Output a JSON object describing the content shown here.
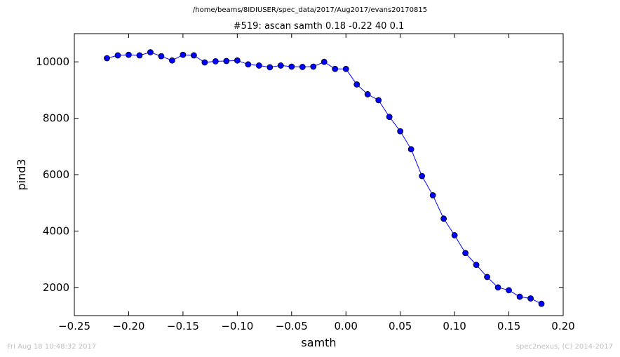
{
  "suptitle": "/home/beams/8IDIUSER/spec_data/2017/Aug2017/evans20170815",
  "footer": {
    "timestamp": "Fri Aug 18 10:48:32 2017",
    "credit": "spec2nexus, (C) 2014-2017"
  },
  "chart_data": {
    "type": "line",
    "title": "#519: ascan  samth 0.18 -0.22  40 0.1",
    "xlabel": "samth",
    "ylabel": "pind3",
    "xlim": [
      -0.25,
      0.2
    ],
    "ylim": [
      1000,
      11000
    ],
    "xticks": [
      -0.25,
      -0.2,
      -0.15,
      -0.1,
      -0.05,
      0.0,
      0.05,
      0.1,
      0.15,
      0.2
    ],
    "xtick_labels": [
      "−0.25",
      "−0.20",
      "−0.15",
      "−0.10",
      "−0.05",
      "0.00",
      "0.05",
      "0.10",
      "0.15",
      "0.20"
    ],
    "yticks": [
      2000,
      4000,
      6000,
      8000,
      10000
    ],
    "ytick_labels": [
      "2000",
      "4000",
      "6000",
      "8000",
      "10000"
    ],
    "grid": false,
    "color": "#0000ff",
    "x": [
      -0.22,
      -0.21,
      -0.2,
      -0.19,
      -0.18,
      -0.17,
      -0.16,
      -0.15,
      -0.14,
      -0.13,
      -0.12,
      -0.11,
      -0.1,
      -0.09,
      -0.08,
      -0.07,
      -0.06,
      -0.05,
      -0.04,
      -0.03,
      -0.02,
      -0.01,
      0.0,
      0.01,
      0.02,
      0.03,
      0.04,
      0.05,
      0.06,
      0.07,
      0.08,
      0.09,
      0.1,
      0.11,
      0.12,
      0.13,
      0.14,
      0.15,
      0.16,
      0.17,
      0.18
    ],
    "y": [
      10130,
      10230,
      10250,
      10230,
      10340,
      10200,
      10050,
      10250,
      10230,
      9980,
      10020,
      10030,
      10050,
      9910,
      9870,
      9810,
      9870,
      9830,
      9820,
      9830,
      10000,
      9750,
      9750,
      9200,
      8850,
      8640,
      8050,
      7540,
      6900,
      5950,
      5270,
      4440,
      3850,
      3220,
      2800,
      2370,
      2000,
      1900,
      1670,
      1610,
      1420
    ]
  }
}
